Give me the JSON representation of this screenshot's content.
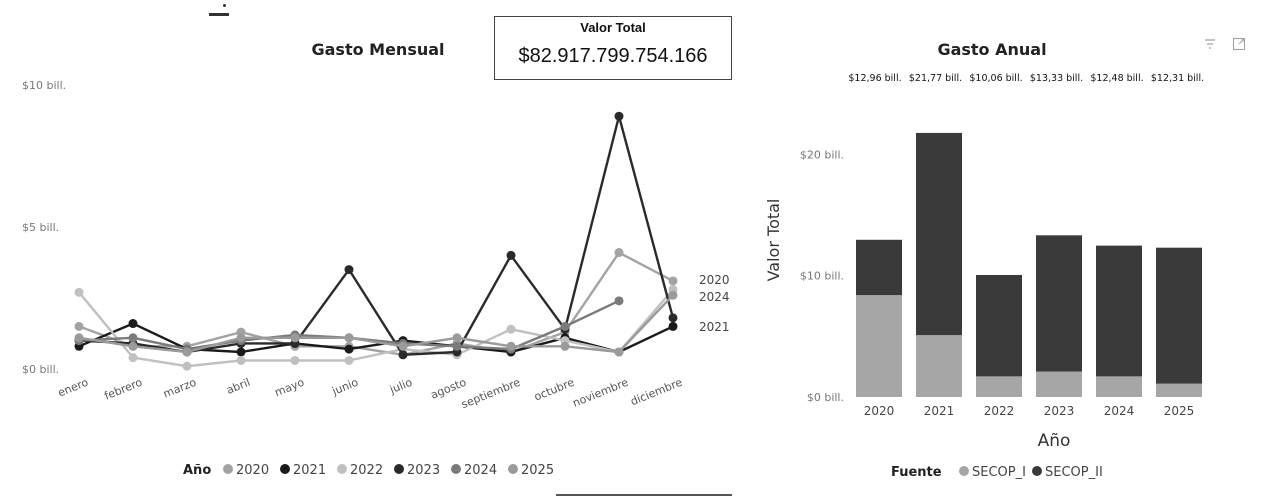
{
  "card": {
    "label": "Valor Total",
    "value": "$82.917.799.754.166"
  },
  "colors": {
    "2020": "#a3a3a3",
    "2021": "#1a1a1a",
    "2022": "#c0c0c0",
    "2023": "#2a2a2a",
    "2024": "#7a7a7a",
    "2025": "#9a9a9a",
    "SECOP_I": "#a6a6a6",
    "SECOP_II": "#3a3a3a"
  },
  "right_icons": {
    "filter": "filter-icon",
    "expand": "expand-icon"
  },
  "chart_data": [
    {
      "type": "line",
      "title": "Gasto Mensual",
      "x": [
        "enero",
        "febrero",
        "marzo",
        "abril",
        "mayo",
        "junio",
        "julio",
        "agosto",
        "septiembre",
        "octubre",
        "noviembre",
        "diciembre"
      ],
      "yticks": [
        "$0 bill.",
        "$5 bill.",
        "$10 bill."
      ],
      "ylim": [
        0,
        10
      ],
      "legend_title": "Año",
      "end_labels": [
        "2020",
        "2024",
        "2021"
      ],
      "series": [
        {
          "name": "2020",
          "values": [
            1.5,
            0.8,
            0.8,
            1.3,
            0.8,
            0.8,
            0.5,
            0.9,
            0.6,
            1.3,
            4.1,
            3.1
          ]
        },
        {
          "name": "2021",
          "values": [
            0.8,
            1.6,
            0.7,
            0.6,
            0.9,
            0.7,
            1.0,
            0.8,
            0.6,
            1.1,
            0.6,
            1.5
          ]
        },
        {
          "name": "2022",
          "values": [
            2.7,
            0.4,
            0.1,
            0.3,
            0.3,
            0.3,
            0.7,
            0.5,
            1.4,
            1.0,
            0.6,
            2.8
          ]
        },
        {
          "name": "2023",
          "values": [
            1.0,
            0.9,
            0.6,
            0.9,
            0.9,
            3.5,
            0.5,
            0.6,
            4.0,
            1.4,
            8.9,
            1.8
          ]
        },
        {
          "name": "2024",
          "values": [
            1.0,
            1.1,
            0.7,
            1.0,
            1.2,
            1.1,
            0.9,
            0.8,
            0.7,
            1.5,
            2.4,
            null
          ]
        },
        {
          "name": "2025",
          "values": [
            1.1,
            0.8,
            0.6,
            1.1,
            1.1,
            1.1,
            0.8,
            1.1,
            0.8,
            0.8,
            0.6,
            2.6
          ]
        }
      ]
    },
    {
      "type": "bar",
      "stacked": true,
      "title": "Gasto Anual",
      "categories": [
        "2020",
        "2021",
        "2022",
        "2023",
        "2024",
        "2025"
      ],
      "xlabel": "Año",
      "ylabel": "Valor Total",
      "yticks": [
        "$0 bill.",
        "$10 bill.",
        "$20 bill."
      ],
      "ylim": [
        0,
        23
      ],
      "total_labels": [
        "$12,96 bill.",
        "$21,77 bill.",
        "$10,06 bill.",
        "$13,33 bill.",
        "$12,48 bill.",
        "$12,31 bill."
      ],
      "legend_title": "Fuente",
      "series": [
        {
          "name": "SECOP_I",
          "values": [
            8.4,
            5.1,
            1.7,
            2.1,
            1.7,
            1.1
          ]
        },
        {
          "name": "SECOP_II",
          "values": [
            4.56,
            16.67,
            8.36,
            11.23,
            10.78,
            11.21
          ]
        }
      ]
    }
  ]
}
